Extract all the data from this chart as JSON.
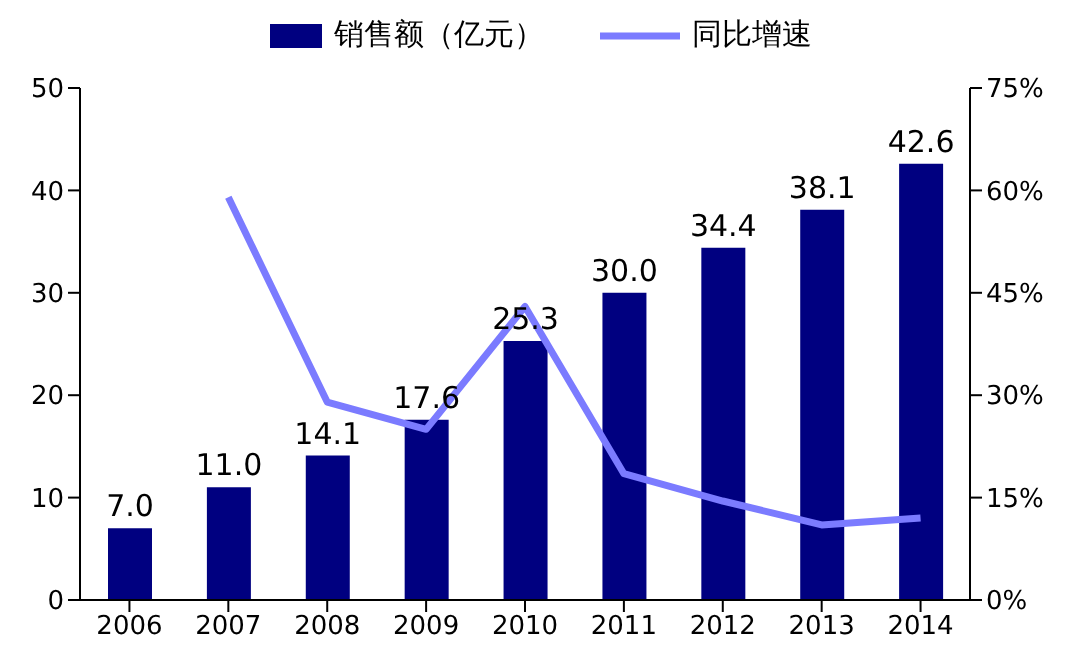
{
  "chart_data": {
    "type": "bar",
    "categories": [
      "2006",
      "2007",
      "2008",
      "2009",
      "2010",
      "2011",
      "2012",
      "2013",
      "2014"
    ],
    "series": [
      {
        "name": "销售额（亿元）",
        "color": "#000080",
        "values": [
          7.0,
          11.0,
          14.1,
          17.6,
          25.3,
          30.0,
          34.4,
          38.1,
          42.6
        ],
        "value_labels": [
          "7.0",
          "11.0",
          "14.1",
          "17.6",
          "25.3",
          "30.0",
          "34.4",
          "38.1",
          "42.6"
        ]
      },
      {
        "name": "同比增速",
        "type": "line",
        "axis": "y2",
        "color": "#7b7bff",
        "values": [
          null,
          59,
          29,
          25,
          43,
          18.5,
          14.5,
          11,
          12
        ]
      }
    ],
    "ylim": [
      0,
      50
    ],
    "yticks": [
      0,
      10,
      20,
      30,
      40,
      50
    ],
    "y2lim": [
      0,
      75
    ],
    "y2ticks": [
      {
        "value": 0,
        "label": "0%"
      },
      {
        "value": 15,
        "label": "15%"
      },
      {
        "value": 30,
        "label": "30%"
      },
      {
        "value": 45,
        "label": "45%"
      },
      {
        "value": 60,
        "label": "60%"
      },
      {
        "value": 75,
        "label": "75%"
      }
    ],
    "legend": "top",
    "grid": false,
    "marker": "none",
    "line_style": "solid"
  }
}
